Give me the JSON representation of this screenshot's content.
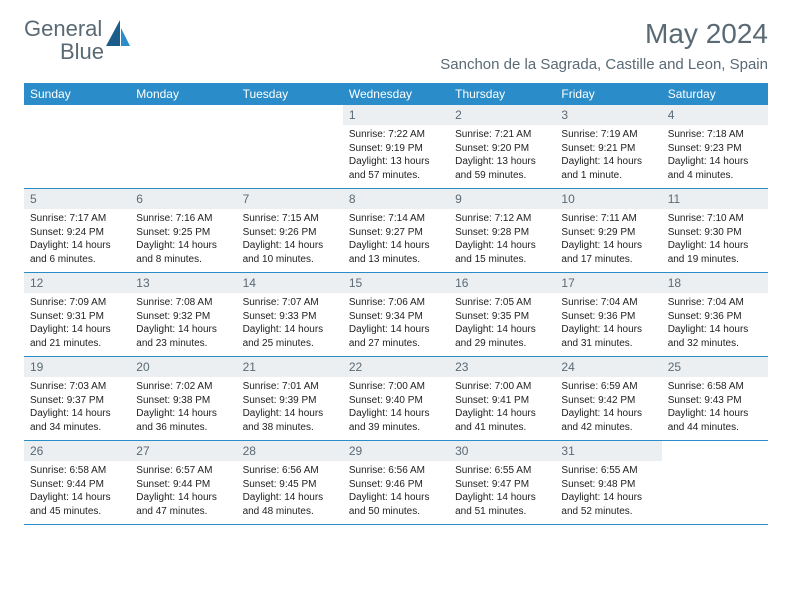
{
  "logo": {
    "text_gray": "General",
    "text_blue": "Blue"
  },
  "title": "May 2024",
  "location": "Sanchon de la Sagrada, Castille and Leon, Spain",
  "colors": {
    "brand_blue": "#2a8cc9",
    "text_gray": "#5a6a75",
    "daynum_bg": "#eceff1",
    "body_text": "#222222"
  },
  "weekdays": [
    "Sunday",
    "Monday",
    "Tuesday",
    "Wednesday",
    "Thursday",
    "Friday",
    "Saturday"
  ],
  "weeks": [
    [
      null,
      null,
      null,
      {
        "n": "1",
        "sunrise": "7:22 AM",
        "sunset": "9:19 PM",
        "daylight": "13 hours and 57 minutes."
      },
      {
        "n": "2",
        "sunrise": "7:21 AM",
        "sunset": "9:20 PM",
        "daylight": "13 hours and 59 minutes."
      },
      {
        "n": "3",
        "sunrise": "7:19 AM",
        "sunset": "9:21 PM",
        "daylight": "14 hours and 1 minute."
      },
      {
        "n": "4",
        "sunrise": "7:18 AM",
        "sunset": "9:23 PM",
        "daylight": "14 hours and 4 minutes."
      }
    ],
    [
      {
        "n": "5",
        "sunrise": "7:17 AM",
        "sunset": "9:24 PM",
        "daylight": "14 hours and 6 minutes."
      },
      {
        "n": "6",
        "sunrise": "7:16 AM",
        "sunset": "9:25 PM",
        "daylight": "14 hours and 8 minutes."
      },
      {
        "n": "7",
        "sunrise": "7:15 AM",
        "sunset": "9:26 PM",
        "daylight": "14 hours and 10 minutes."
      },
      {
        "n": "8",
        "sunrise": "7:14 AM",
        "sunset": "9:27 PM",
        "daylight": "14 hours and 13 minutes."
      },
      {
        "n": "9",
        "sunrise": "7:12 AM",
        "sunset": "9:28 PM",
        "daylight": "14 hours and 15 minutes."
      },
      {
        "n": "10",
        "sunrise": "7:11 AM",
        "sunset": "9:29 PM",
        "daylight": "14 hours and 17 minutes."
      },
      {
        "n": "11",
        "sunrise": "7:10 AM",
        "sunset": "9:30 PM",
        "daylight": "14 hours and 19 minutes."
      }
    ],
    [
      {
        "n": "12",
        "sunrise": "7:09 AM",
        "sunset": "9:31 PM",
        "daylight": "14 hours and 21 minutes."
      },
      {
        "n": "13",
        "sunrise": "7:08 AM",
        "sunset": "9:32 PM",
        "daylight": "14 hours and 23 minutes."
      },
      {
        "n": "14",
        "sunrise": "7:07 AM",
        "sunset": "9:33 PM",
        "daylight": "14 hours and 25 minutes."
      },
      {
        "n": "15",
        "sunrise": "7:06 AM",
        "sunset": "9:34 PM",
        "daylight": "14 hours and 27 minutes."
      },
      {
        "n": "16",
        "sunrise": "7:05 AM",
        "sunset": "9:35 PM",
        "daylight": "14 hours and 29 minutes."
      },
      {
        "n": "17",
        "sunrise": "7:04 AM",
        "sunset": "9:36 PM",
        "daylight": "14 hours and 31 minutes."
      },
      {
        "n": "18",
        "sunrise": "7:04 AM",
        "sunset": "9:36 PM",
        "daylight": "14 hours and 32 minutes."
      }
    ],
    [
      {
        "n": "19",
        "sunrise": "7:03 AM",
        "sunset": "9:37 PM",
        "daylight": "14 hours and 34 minutes."
      },
      {
        "n": "20",
        "sunrise": "7:02 AM",
        "sunset": "9:38 PM",
        "daylight": "14 hours and 36 minutes."
      },
      {
        "n": "21",
        "sunrise": "7:01 AM",
        "sunset": "9:39 PM",
        "daylight": "14 hours and 38 minutes."
      },
      {
        "n": "22",
        "sunrise": "7:00 AM",
        "sunset": "9:40 PM",
        "daylight": "14 hours and 39 minutes."
      },
      {
        "n": "23",
        "sunrise": "7:00 AM",
        "sunset": "9:41 PM",
        "daylight": "14 hours and 41 minutes."
      },
      {
        "n": "24",
        "sunrise": "6:59 AM",
        "sunset": "9:42 PM",
        "daylight": "14 hours and 42 minutes."
      },
      {
        "n": "25",
        "sunrise": "6:58 AM",
        "sunset": "9:43 PM",
        "daylight": "14 hours and 44 minutes."
      }
    ],
    [
      {
        "n": "26",
        "sunrise": "6:58 AM",
        "sunset": "9:44 PM",
        "daylight": "14 hours and 45 minutes."
      },
      {
        "n": "27",
        "sunrise": "6:57 AM",
        "sunset": "9:44 PM",
        "daylight": "14 hours and 47 minutes."
      },
      {
        "n": "28",
        "sunrise": "6:56 AM",
        "sunset": "9:45 PM",
        "daylight": "14 hours and 48 minutes."
      },
      {
        "n": "29",
        "sunrise": "6:56 AM",
        "sunset": "9:46 PM",
        "daylight": "14 hours and 50 minutes."
      },
      {
        "n": "30",
        "sunrise": "6:55 AM",
        "sunset": "9:47 PM",
        "daylight": "14 hours and 51 minutes."
      },
      {
        "n": "31",
        "sunrise": "6:55 AM",
        "sunset": "9:48 PM",
        "daylight": "14 hours and 52 minutes."
      },
      null
    ]
  ],
  "labels": {
    "sunrise": "Sunrise:",
    "sunset": "Sunset:",
    "daylight": "Daylight:"
  }
}
